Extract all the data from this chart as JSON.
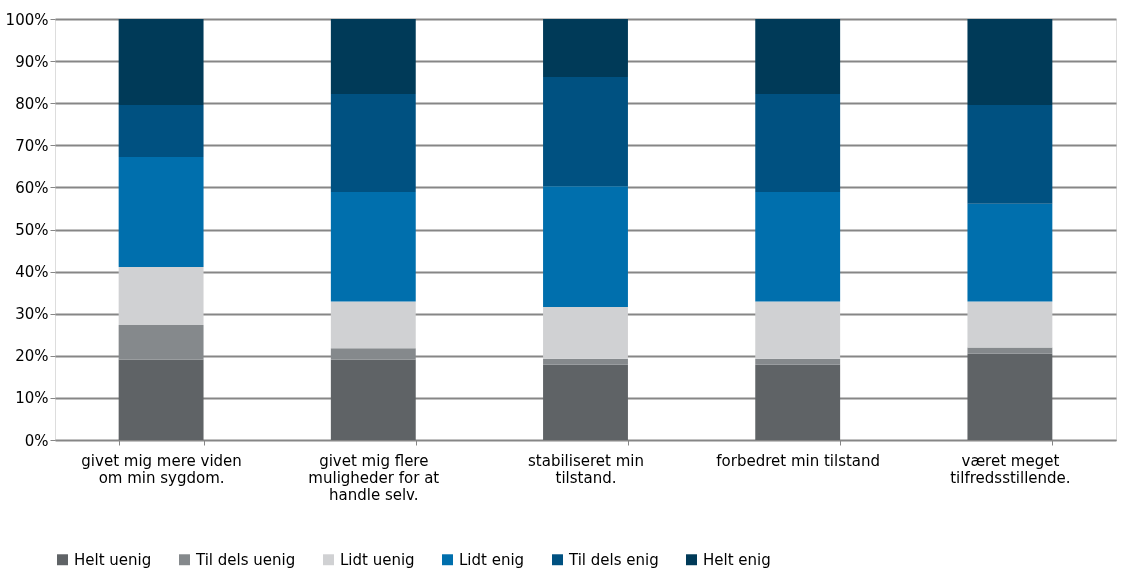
{
  "chart_data": {
    "type": "bar",
    "stacked": true,
    "categories": [
      "givet mig mere viden om min sygdom.",
      "givet mig flere muligheder for at handle selv.",
      "stabiliseret min tilstand.",
      "forbedret min tilstand",
      "været meget tilfredsstillende."
    ],
    "series": [
      {
        "name": "Helt uenig",
        "color": "#5f6366",
        "values": [
          19.1,
          19.1,
          17.9,
          17.9,
          20.5
        ]
      },
      {
        "name": "Til dels uenig",
        "color": "#85898c",
        "values": [
          8.2,
          2.7,
          1.4,
          1.4,
          1.5
        ]
      },
      {
        "name": "Lidt uenig",
        "color": "#d0d1d3",
        "values": [
          13.8,
          11.1,
          12.3,
          13.6,
          10.9
        ]
      },
      {
        "name": "Lidt enig",
        "color": "#006fad",
        "values": [
          26.1,
          26.0,
          28.7,
          26.0,
          23.2
        ]
      },
      {
        "name": "Til dels enig",
        "color": "#005181",
        "values": [
          12.4,
          23.3,
          25.9,
          23.3,
          23.5
        ]
      },
      {
        "name": "Helt enig",
        "color": "#003a58",
        "values": [
          20.4,
          17.8,
          13.8,
          17.8,
          20.4
        ]
      }
    ],
    "ylim": [
      0,
      100
    ],
    "yticks": [
      {
        "value": 0,
        "label": "0%"
      },
      {
        "value": 10,
        "label": "10%"
      },
      {
        "value": 20,
        "label": "20%"
      },
      {
        "value": 30,
        "label": "30%"
      },
      {
        "value": 40,
        "label": "40%"
      },
      {
        "value": 50,
        "label": "50%"
      },
      {
        "value": 60,
        "label": "60%"
      },
      {
        "value": 70,
        "label": "70%"
      },
      {
        "value": 80,
        "label": "80%"
      },
      {
        "value": 90,
        "label": "90%"
      },
      {
        "value": 100,
        "label": "100%"
      }
    ],
    "grid": "y",
    "legend": "bottom"
  }
}
